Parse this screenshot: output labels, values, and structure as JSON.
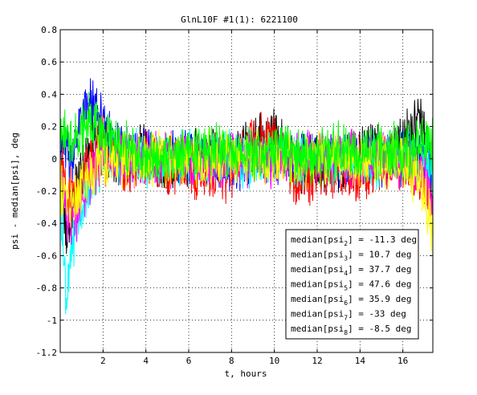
{
  "chart_data": {
    "type": "line",
    "title": "GlnL10F #1(1): 6221100",
    "xlabel": "t, hours",
    "ylabel": "psi - median[psi], deg",
    "xlim": [
      0,
      17.4
    ],
    "ylim": [
      -1.2,
      0.8
    ],
    "x_ticks": [
      2,
      4,
      6,
      8,
      10,
      12,
      14,
      16
    ],
    "y_ticks": [
      -1.2,
      -1,
      -0.8,
      -0.6,
      -0.4,
      -0.2,
      0,
      0.2,
      0.4,
      0.6,
      0.8
    ],
    "x_tick_labels": [
      "2",
      "4",
      "6",
      "8",
      "10",
      "12",
      "14",
      "16"
    ],
    "y_tick_labels": [
      "-1.2",
      "-1",
      "-0.8",
      "-0.6",
      "-0.4",
      "-0.2",
      "0",
      "0.2",
      "0.4",
      "0.6",
      "0.8"
    ],
    "grid": true,
    "legend": {
      "placement": "bottom-right",
      "entries": [
        {
          "prefix": "median[psi",
          "sub": "2",
          "suffix": "] = -11.3 deg"
        },
        {
          "prefix": "median[psi",
          "sub": "3",
          "suffix": "] = 10.7 deg"
        },
        {
          "prefix": "median[psi",
          "sub": "4",
          "suffix": "] = 37.7 deg"
        },
        {
          "prefix": "median[psi",
          "sub": "5",
          "suffix": "] = 47.6 deg"
        },
        {
          "prefix": "median[psi",
          "sub": "6",
          "suffix": "] = 35.9 deg"
        },
        {
          "prefix": "median[psi",
          "sub": "7",
          "suffix": "] = -33 deg"
        },
        {
          "prefix": "median[psi",
          "sub": "8",
          "suffix": "] = -8.5 deg"
        }
      ]
    },
    "series": [
      {
        "color": "#000000",
        "points": [
          [
            0,
            0.05
          ],
          [
            0.3,
            -0.55
          ],
          [
            0.6,
            -0.25
          ],
          [
            1,
            -0.1
          ],
          [
            1.5,
            0.1
          ],
          [
            2,
            0.05
          ],
          [
            3,
            0.0
          ],
          [
            4,
            0.05
          ],
          [
            5,
            -0.05
          ],
          [
            6,
            0.0
          ],
          [
            7,
            0.05
          ],
          [
            8,
            0.0
          ],
          [
            9,
            0.1
          ],
          [
            10,
            0.15
          ],
          [
            11,
            -0.05
          ],
          [
            12,
            0.0
          ],
          [
            13,
            -0.05
          ],
          [
            14,
            0.05
          ],
          [
            15,
            0.05
          ],
          [
            16,
            0.1
          ],
          [
            16.8,
            0.25
          ],
          [
            17.4,
            -0.1
          ]
        ]
      },
      {
        "color": "#0000ff",
        "points": [
          [
            0,
            0.1
          ],
          [
            0.5,
            0.0
          ],
          [
            1,
            0.25
          ],
          [
            1.5,
            0.35
          ],
          [
            2,
            0.2
          ],
          [
            3,
            0.05
          ],
          [
            4,
            0.0
          ],
          [
            5,
            0.0
          ],
          [
            6,
            0.0
          ],
          [
            7,
            0.0
          ],
          [
            8,
            -0.05
          ],
          [
            9,
            0.0
          ],
          [
            10,
            0.0
          ],
          [
            11,
            0.0
          ],
          [
            12,
            0.0
          ],
          [
            13,
            0.0
          ],
          [
            14,
            0.0
          ],
          [
            15,
            0.0
          ],
          [
            16,
            0.0
          ],
          [
            17,
            0.0
          ],
          [
            17.4,
            -0.1
          ]
        ]
      },
      {
        "color": "#ff0000",
        "points": [
          [
            0,
            -0.05
          ],
          [
            0.5,
            -0.25
          ],
          [
            1,
            -0.15
          ],
          [
            1.5,
            0.0
          ],
          [
            2,
            0.1
          ],
          [
            3,
            -0.1
          ],
          [
            4,
            0.0
          ],
          [
            5,
            -0.05
          ],
          [
            6,
            -0.05
          ],
          [
            7,
            -0.1
          ],
          [
            8,
            -0.1
          ],
          [
            9,
            0.15
          ],
          [
            10,
            0.15
          ],
          [
            11,
            -0.15
          ],
          [
            12,
            -0.1
          ],
          [
            13,
            -0.05
          ],
          [
            14,
            -0.1
          ],
          [
            15,
            -0.05
          ],
          [
            16,
            -0.05
          ],
          [
            17,
            -0.1
          ],
          [
            17.4,
            -0.3
          ]
        ]
      },
      {
        "color": "#00ffff",
        "points": [
          [
            0,
            -0.2
          ],
          [
            0.3,
            -0.9
          ],
          [
            0.6,
            -0.5
          ],
          [
            1,
            -0.3
          ],
          [
            1.5,
            -0.15
          ],
          [
            2,
            0.0
          ],
          [
            3,
            0.0
          ],
          [
            4,
            0.0
          ],
          [
            5,
            0.0
          ],
          [
            6,
            0.0
          ],
          [
            7,
            0.0
          ],
          [
            8,
            0.0
          ],
          [
            9,
            0.0
          ],
          [
            10,
            0.0
          ],
          [
            11,
            0.0
          ],
          [
            12,
            0.0
          ],
          [
            13,
            0.0
          ],
          [
            14,
            0.0
          ],
          [
            15,
            0.0
          ],
          [
            16,
            0.0
          ],
          [
            17,
            0.0
          ],
          [
            17.4,
            -0.1
          ]
        ]
      },
      {
        "color": "#ff00ff",
        "points": [
          [
            0,
            -0.1
          ],
          [
            0.4,
            -0.45
          ],
          [
            0.8,
            -0.35
          ],
          [
            1.2,
            -0.15
          ],
          [
            1.6,
            -0.05
          ],
          [
            2,
            0.0
          ],
          [
            3,
            0.0
          ],
          [
            4,
            0.0
          ],
          [
            5,
            0.0
          ],
          [
            6,
            0.0
          ],
          [
            7,
            0.0
          ],
          [
            8,
            0.0
          ],
          [
            9,
            0.0
          ],
          [
            10,
            0.0
          ],
          [
            11,
            0.0
          ],
          [
            12,
            0.0
          ],
          [
            13,
            0.0
          ],
          [
            14,
            0.0
          ],
          [
            15,
            0.0
          ],
          [
            16,
            0.0
          ],
          [
            17,
            -0.1
          ],
          [
            17.4,
            -0.4
          ]
        ]
      },
      {
        "color": "#ffff00",
        "points": [
          [
            0,
            -0.15
          ],
          [
            0.4,
            -0.3
          ],
          [
            0.8,
            -0.25
          ],
          [
            1.2,
            -0.15
          ],
          [
            1.6,
            -0.05
          ],
          [
            2,
            0.0
          ],
          [
            3,
            0.0
          ],
          [
            4,
            0.0
          ],
          [
            5,
            0.0
          ],
          [
            6,
            0.0
          ],
          [
            7,
            0.0
          ],
          [
            8,
            0.0
          ],
          [
            9,
            0.0
          ],
          [
            10,
            0.0
          ],
          [
            11,
            0.0
          ],
          [
            12,
            0.0
          ],
          [
            13,
            0.0
          ],
          [
            14,
            0.0
          ],
          [
            15,
            0.0
          ],
          [
            16,
            0.0
          ],
          [
            17,
            -0.2
          ],
          [
            17.4,
            -0.45
          ]
        ]
      },
      {
        "color": "#00ff00",
        "points": [
          [
            0,
            0.15
          ],
          [
            0.5,
            0.1
          ],
          [
            1,
            0.2
          ],
          [
            1.5,
            0.25
          ],
          [
            2,
            0.15
          ],
          [
            3,
            0.05
          ],
          [
            4,
            0.0
          ],
          [
            5,
            0.0
          ],
          [
            6,
            0.05
          ],
          [
            7,
            0.05
          ],
          [
            8,
            0.05
          ],
          [
            9,
            0.05
          ],
          [
            10,
            0.05
          ],
          [
            11,
            0.0
          ],
          [
            12,
            0.0
          ],
          [
            13,
            0.05
          ],
          [
            14,
            0.05
          ],
          [
            15,
            0.05
          ],
          [
            16,
            0.05
          ],
          [
            17,
            0.1
          ],
          [
            17.4,
            0.1
          ]
        ]
      }
    ]
  }
}
